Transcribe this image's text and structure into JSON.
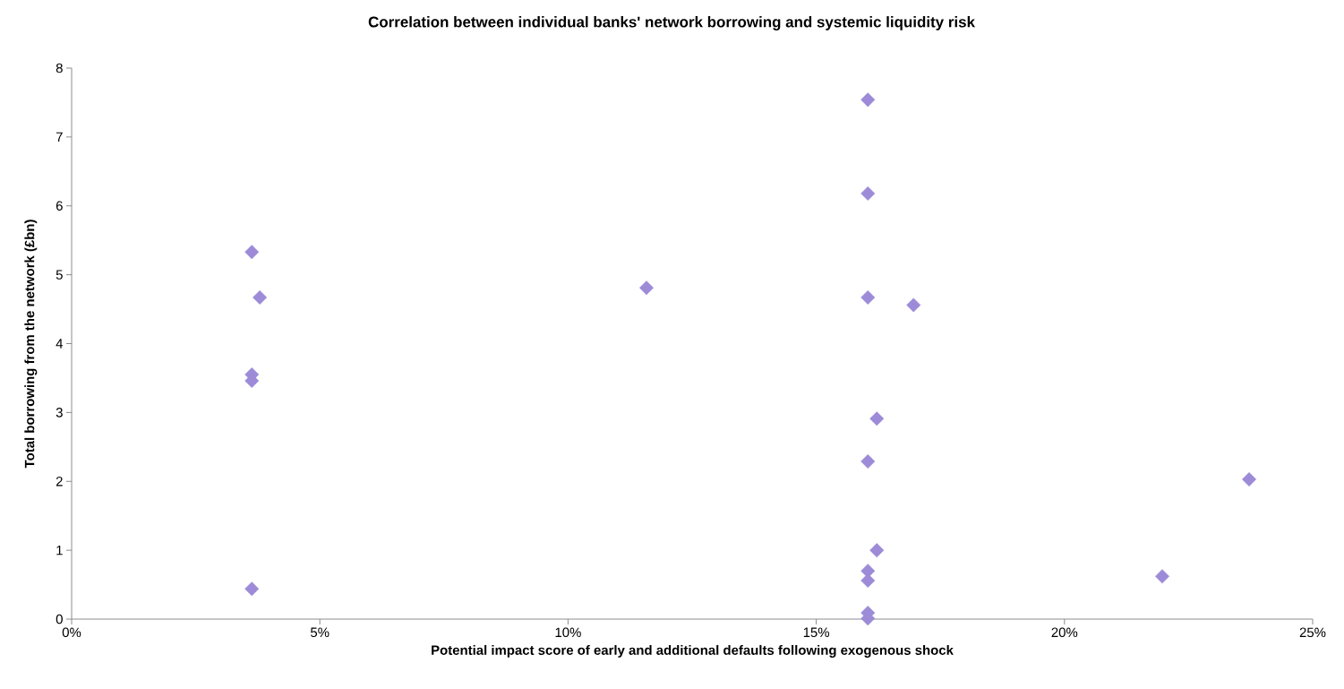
{
  "chart_data": {
    "type": "scatter",
    "title": "Correlation between individual banks' network borrowing and systemic liquidity risk",
    "xlabel": "Potential impact score of early and additional defaults following exogenous shock",
    "ylabel": "Total borrowing from the network (£bn)",
    "series": [
      {
        "color": "#9d8bd8",
        "x": [
          3.63,
          3.79,
          3.63,
          3.63,
          3.63,
          11.58,
          16.04,
          16.04,
          16.04,
          16.96,
          16.22,
          16.04,
          16.22,
          16.04,
          16.04,
          16.04,
          16.04,
          21.97,
          23.72
        ],
        "values": [
          5.33,
          4.67,
          3.55,
          3.46,
          0.44,
          4.81,
          7.54,
          6.18,
          4.67,
          4.56,
          2.91,
          2.29,
          1.0,
          0.7,
          0.56,
          0.09,
          0.01,
          0.62,
          2.03
        ]
      }
    ],
    "marker": "diamond",
    "xlim": [
      0,
      25
    ],
    "ylim": [
      0,
      8
    ],
    "xticks": [
      {
        "value": 0,
        "label": "0%"
      },
      {
        "value": 5,
        "label": "5%"
      },
      {
        "value": 10,
        "label": "10%"
      },
      {
        "value": 15,
        "label": "15%"
      },
      {
        "value": 20,
        "label": "20%"
      },
      {
        "value": 25,
        "label": "25%"
      }
    ],
    "yticks": [
      0,
      1,
      2,
      3,
      4,
      5,
      6,
      7,
      8
    ],
    "grid": false
  }
}
